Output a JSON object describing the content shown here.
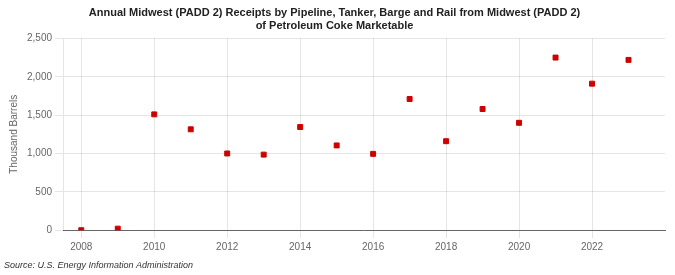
{
  "chart_data": {
    "type": "scatter",
    "title": "Annual Midwest (PADD 2) Receipts by Pipeline, Tanker, Barge and Rail from Midwest (PADD 2)\nof Petroleum Coke Marketable",
    "ylabel": "Thousand Barrels",
    "source": "Source: U.S. Energy Information Administration",
    "x": [
      2008,
      2009,
      2010,
      2011,
      2012,
      2013,
      2014,
      2015,
      2016,
      2017,
      2018,
      2019,
      2020,
      2021,
      2022,
      2023
    ],
    "values": [
      0,
      20,
      1510,
      1315,
      1000,
      985,
      1345,
      1105,
      995,
      1710,
      1160,
      1580,
      1400,
      2250,
      1910,
      2220
    ],
    "color": "#cc0000",
    "marker": "square",
    "xlim": [
      2007.5,
      2024.0
    ],
    "xticks": [
      2008,
      2010,
      2012,
      2014,
      2016,
      2018,
      2020,
      2022
    ],
    "ylim": [
      0,
      2500
    ],
    "yticks": [
      0,
      500,
      {
        "value": 1000,
        "label": "1,000"
      },
      {
        "value": 1500,
        "label": "1,500"
      },
      {
        "value": 2000,
        "label": "2,000"
      },
      {
        "value": 2500,
        "label": "2,500"
      }
    ],
    "grid": true
  }
}
